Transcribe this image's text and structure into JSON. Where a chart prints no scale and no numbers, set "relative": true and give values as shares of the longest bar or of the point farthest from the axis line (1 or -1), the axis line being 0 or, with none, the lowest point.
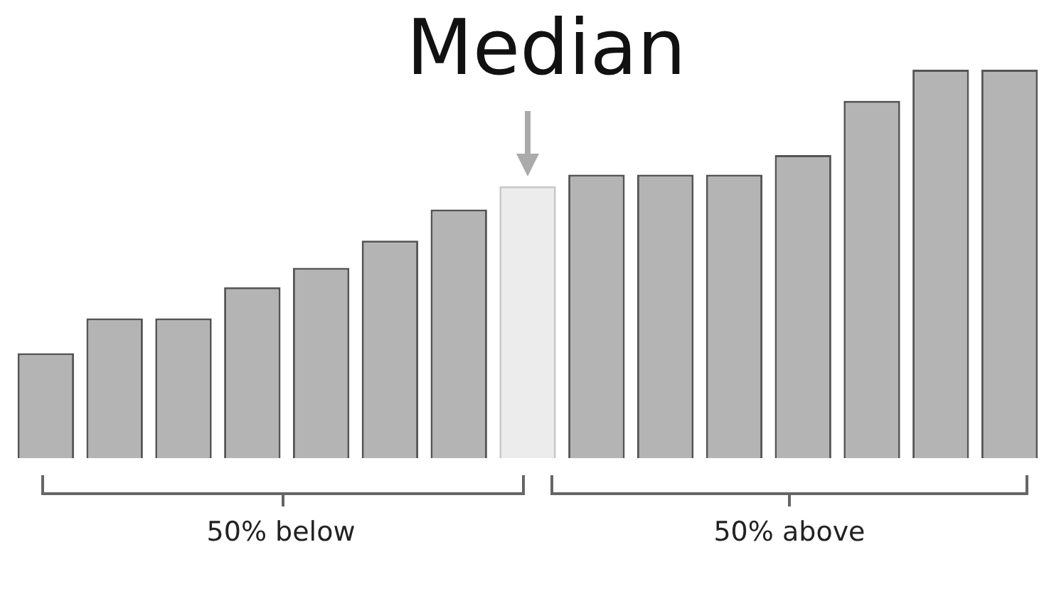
{
  "chart_data": {
    "type": "bar",
    "title": "Median",
    "relative": true,
    "categories": [
      null,
      null,
      null,
      null,
      null,
      null,
      null,
      null,
      null,
      null,
      null,
      null,
      null,
      null,
      null
    ],
    "values": [
      0.27,
      0.36,
      0.36,
      0.44,
      0.49,
      0.56,
      0.64,
      0.7,
      0.73,
      0.73,
      0.73,
      0.78,
      0.92,
      1,
      1
    ],
    "colors": [
      "#b4b4b4",
      "#b4b4b4",
      "#b4b4b4",
      "#b4b4b4",
      "#b4b4b4",
      "#b4b4b4",
      "#b4b4b4",
      "#ececec",
      "#b4b4b4",
      "#b4b4b4",
      "#b4b4b4",
      "#b4b4b4",
      "#b4b4b4",
      "#b4b4b4",
      "#b4b4b4"
    ],
    "annotations": [
      "50% below",
      "50% above"
    ]
  }
}
